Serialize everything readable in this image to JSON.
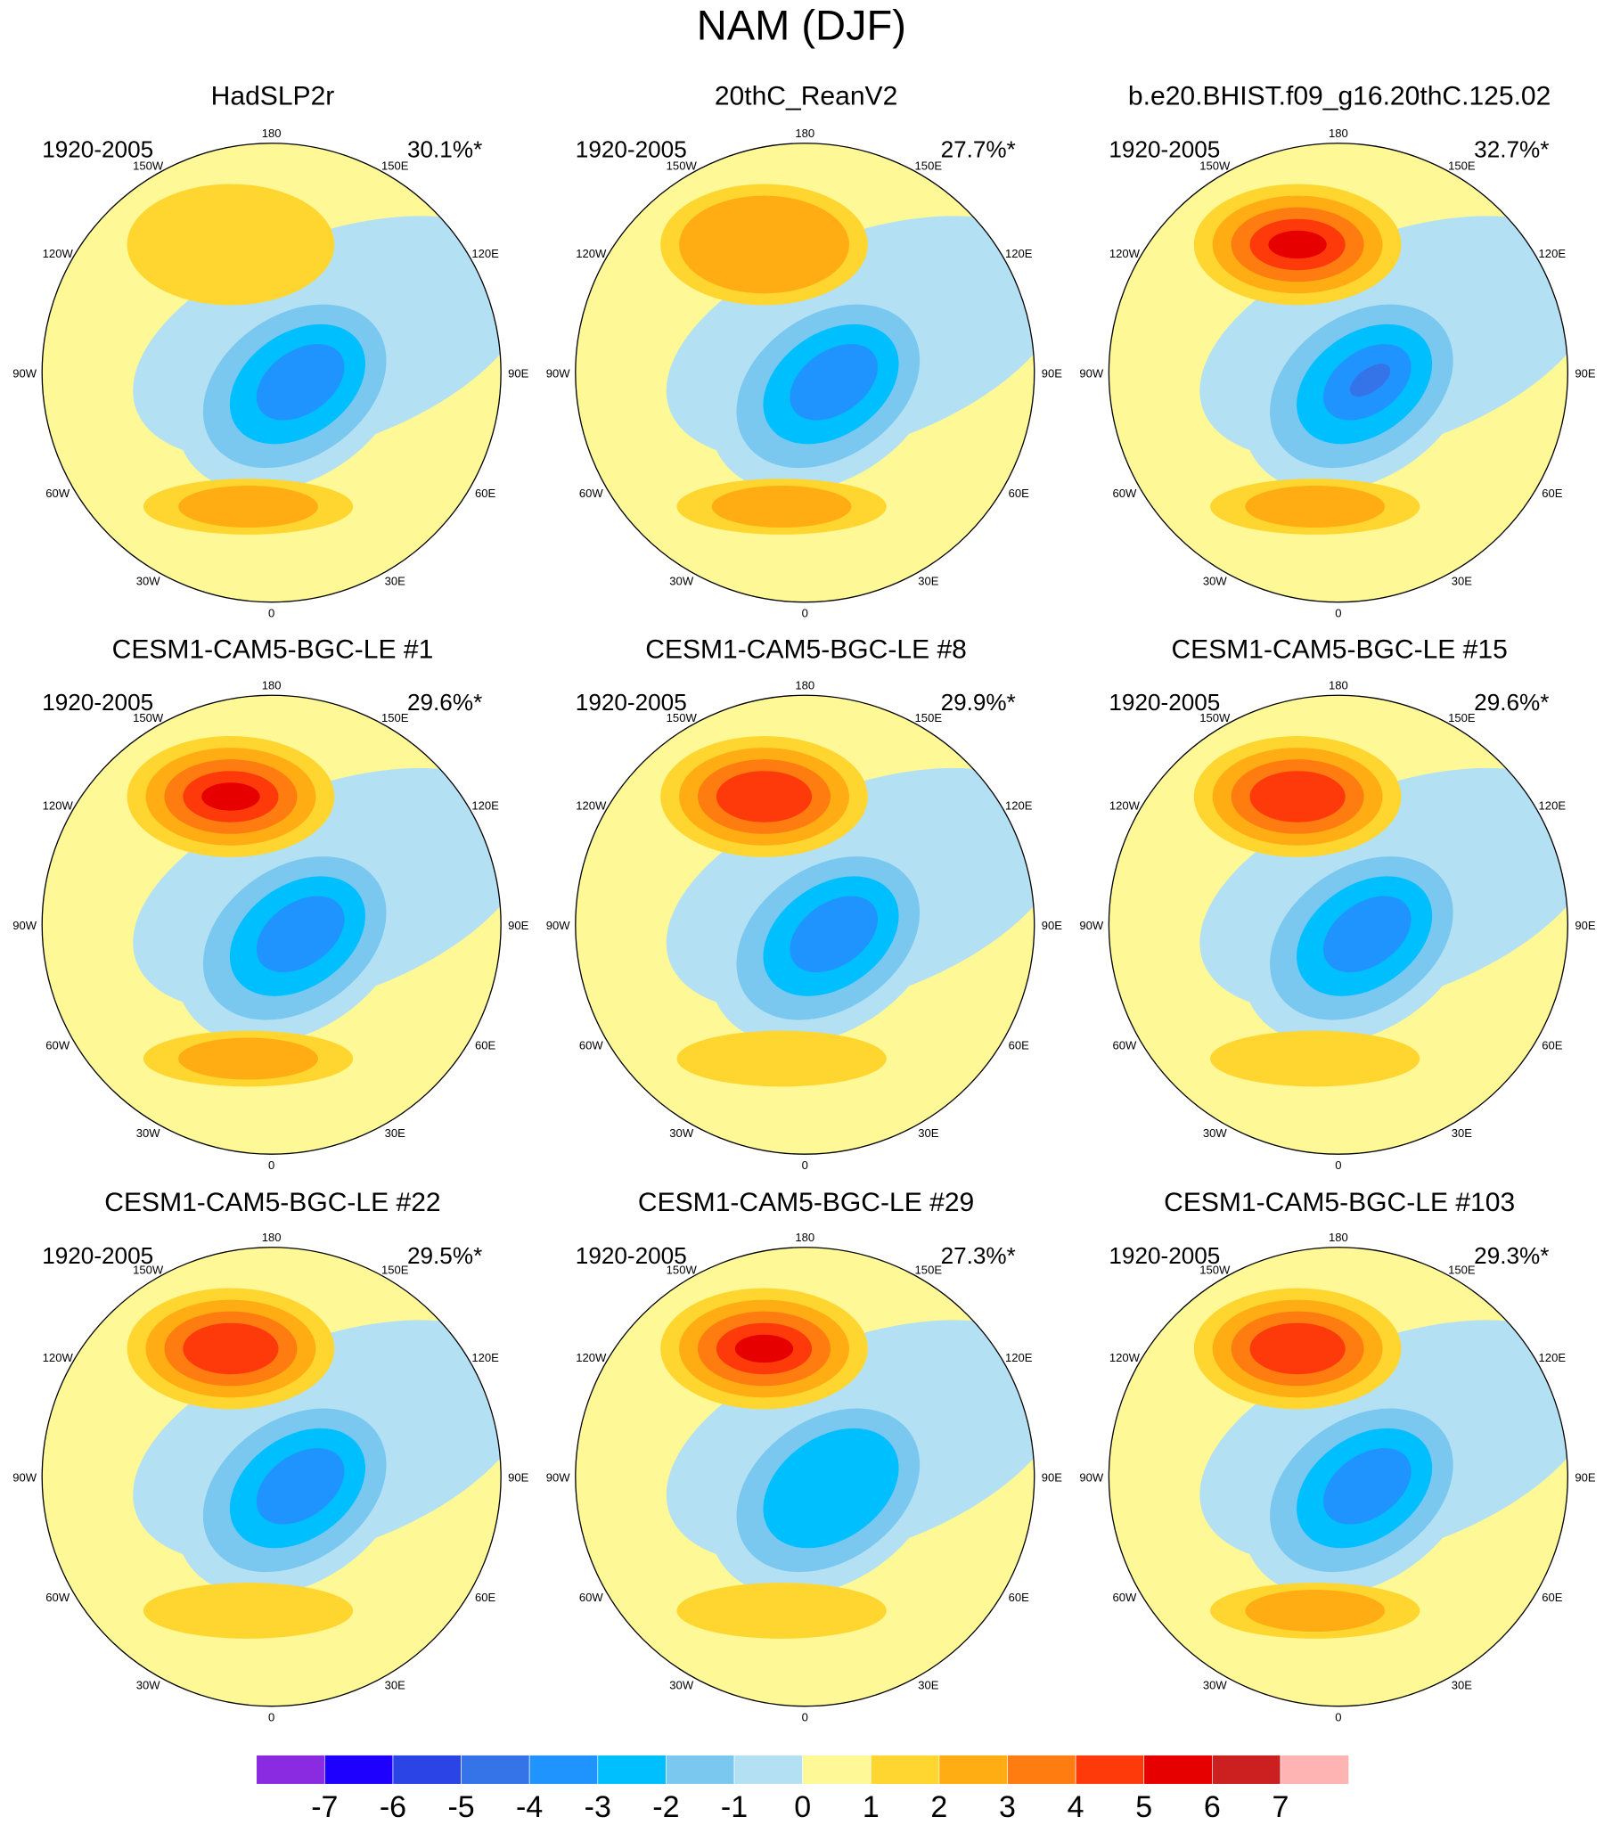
{
  "title": "NAM (DJF)",
  "panels": [
    {
      "title": "HadSLP2r",
      "period": "1920-2005",
      "variance": "30.1%*"
    },
    {
      "title": "20thC_ReanV2",
      "period": "1920-2005",
      "variance": "27.7%*"
    },
    {
      "title": "b.e20.BHIST.f09_g16.20thC.125.02",
      "period": "1920-2005",
      "variance": "32.7%*"
    },
    {
      "title": "CESM1-CAM5-BGC-LE #1",
      "period": "1920-2005",
      "variance": "29.6%*"
    },
    {
      "title": "CESM1-CAM5-BGC-LE #8",
      "period": "1920-2005",
      "variance": "29.9%*"
    },
    {
      "title": "CESM1-CAM5-BGC-LE #15",
      "period": "1920-2005",
      "variance": "29.6%*"
    },
    {
      "title": "CESM1-CAM5-BGC-LE #22",
      "period": "1920-2005",
      "variance": "29.5%*"
    },
    {
      "title": "CESM1-CAM5-BGC-LE #29",
      "period": "1920-2005",
      "variance": "27.3%*"
    },
    {
      "title": "CESM1-CAM5-BGC-LE #103",
      "period": "1920-2005",
      "variance": "29.3%*"
    }
  ],
  "lon_labels": [
    "180",
    "150E",
    "120E",
    "90E",
    "60E",
    "30E",
    "0",
    "30W",
    "60W",
    "90W",
    "120W",
    "150W"
  ],
  "colorbar": {
    "colors": [
      "#8a2be2",
      "#1e00ff",
      "#2a44e6",
      "#3574e8",
      "#1f94ff",
      "#00bfff",
      "#7ac8f0",
      "#b4e0f4",
      "#fff897",
      "#ffd630",
      "#ffad12",
      "#ff7c10",
      "#ff3a0a",
      "#e60000",
      "#cc1f1f",
      "#ffb4b4"
    ],
    "labels": [
      -7,
      -6,
      -5,
      -4,
      -3,
      -2,
      -1,
      0,
      1,
      2,
      3,
      4,
      5,
      6,
      7
    ]
  }
}
